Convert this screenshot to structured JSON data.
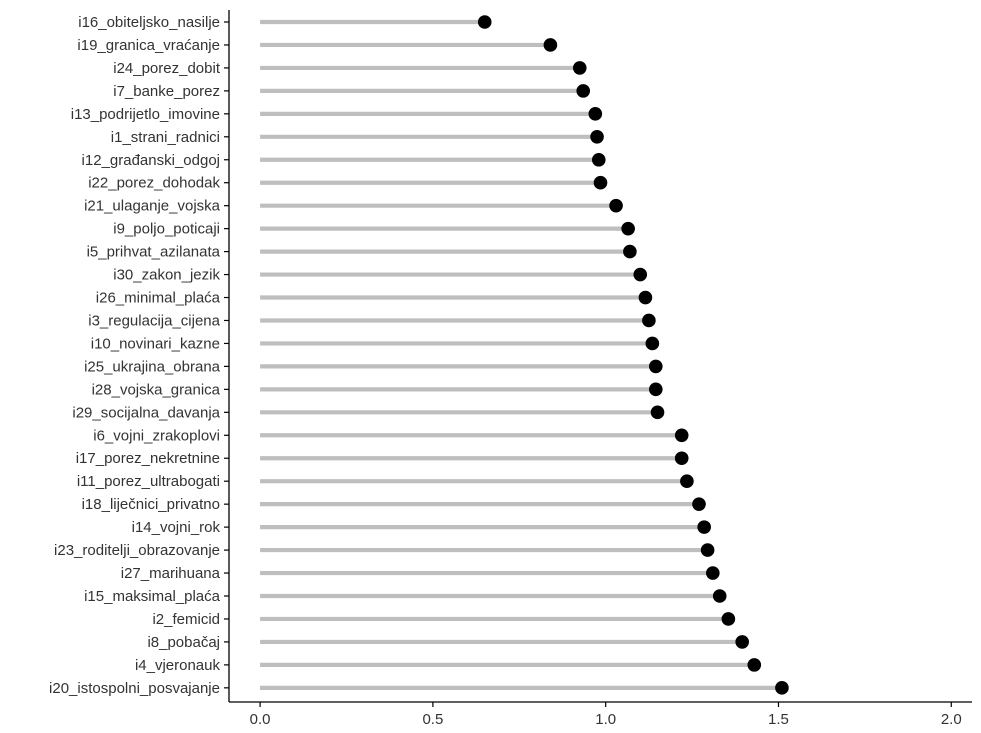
{
  "chart_data": {
    "type": "lollipop",
    "title": "",
    "xlabel": "",
    "ylabel": "",
    "xlim": [
      -0.09,
      2.06
    ],
    "x_ticks": [
      0.0,
      0.5,
      1.0,
      1.5,
      2.0
    ],
    "x_tick_labels": [
      "0.0",
      "0.5",
      "1.0",
      "1.5",
      "2.0"
    ],
    "grid": false,
    "legend": "none",
    "colors": {
      "stem": "#bebebe",
      "point": "#000000",
      "axis": "#000000"
    },
    "categories": [
      "i16_obiteljsko_nasilje",
      "i19_granica_vraćanje",
      "i24_porez_dobit",
      "i7_banke_porez",
      "i13_podrijetlo_imovine",
      "i1_strani_radnici",
      "i12_građanski_odgoj",
      "i22_porez_dohodak",
      "i21_ulaganje_vojska",
      "i9_poljo_poticaji",
      "i5_prihvat_azilanata",
      "i30_zakon_jezik",
      "i26_minimal_plaća",
      "i3_regulacija_cijena",
      "i10_novinari_kazne",
      "i25_ukrajina_obrana",
      "i28_vojska_granica",
      "i29_socijalna_davanja",
      "i6_vojni_zrakoplovi",
      "i17_porez_nekretnine",
      "i11_porez_ultrabogati",
      "i18_liječnici_privatno",
      "i14_vojni_rok",
      "i23_roditelji_obrazovanje",
      "i27_marihuana",
      "i15_maksimal_plaća",
      "i2_femicid",
      "i8_pobačaj",
      "i4_vjeronauk",
      "i20_istospolni_posvajanje"
    ],
    "values": [
      0.65,
      0.84,
      0.925,
      0.935,
      0.97,
      0.975,
      0.98,
      0.985,
      1.03,
      1.065,
      1.07,
      1.1,
      1.115,
      1.125,
      1.135,
      1.145,
      1.145,
      1.15,
      1.22,
      1.22,
      1.235,
      1.27,
      1.285,
      1.295,
      1.31,
      1.33,
      1.355,
      1.395,
      1.43,
      1.51
    ]
  }
}
